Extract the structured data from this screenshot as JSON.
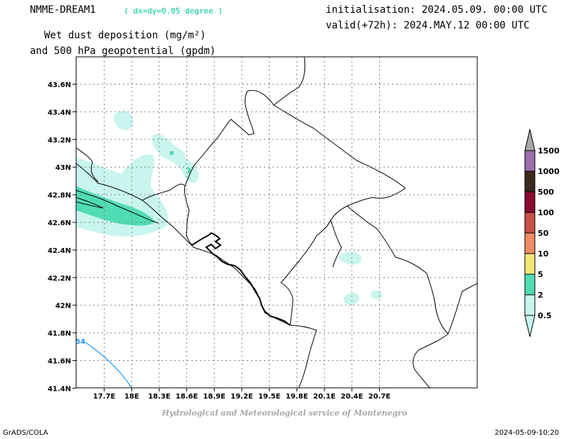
{
  "header": {
    "model": "NMME-DREAM1",
    "resolution": "( dx=dy=0.05 degree )",
    "variable_line1": "Wet dust deposition (mg/m²)",
    "variable_line2": "and 500 hPa geopotential (gpdm)",
    "initialisation": "initialisation: 2024.05.09. 00:00 UTC",
    "valid": "valid(+72h): 2024.MAY.12 00:00 UTC"
  },
  "map": {
    "lon_ticks": [
      "17.7E",
      "18E",
      "18.3E",
      "18.6E",
      "18.9E",
      "19.2E",
      "19.5E",
      "19.8E",
      "20.1E",
      "20.4E",
      "20.7E"
    ],
    "lat_ticks": [
      "43.6N",
      "43.4N",
      "43.2N",
      "43N",
      "42.8N",
      "42.6N",
      "42.4N",
      "42.2N",
      "42N",
      "41.8N",
      "41.6N",
      "41.4N"
    ],
    "contour_label": "54",
    "contour_color": "#1e96f0",
    "grid": true
  },
  "colorbar": {
    "labels": [
      "0.5",
      "2",
      "5",
      "10",
      "50",
      "100",
      "500",
      "1000",
      "1500"
    ],
    "colors": [
      "#c8f5ee",
      "#50dcb4",
      "#f5e678",
      "#f08c64",
      "#c85046",
      "#8c0a32",
      "#3c281e",
      "#9b6eaa",
      "#a8a8a8"
    ]
  },
  "credit": "Hydrological and Meteorological service of Montenegro",
  "footer": {
    "left": "GrADS/COLA",
    "right": "2024-05-09-10:20"
  }
}
